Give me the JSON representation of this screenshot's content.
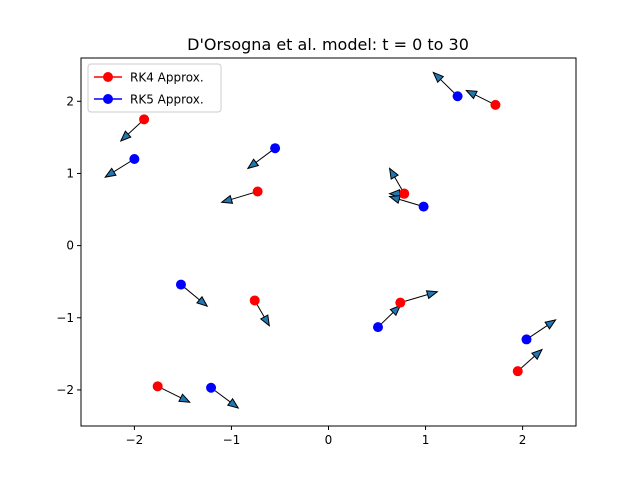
{
  "chart_data": {
    "type": "scatter",
    "title": "D'Orsogna et al. model: t = 0 to 30",
    "xlabel": "",
    "ylabel": "",
    "xlim": [
      -2.55,
      2.55
    ],
    "ylim": [
      -2.5,
      2.6
    ],
    "xticks": [
      -2,
      -1,
      0,
      1,
      2
    ],
    "yticks": [
      -2,
      -1,
      0,
      1,
      2
    ],
    "xtick_labels": [
      "−2",
      "−1",
      "0",
      "1",
      "2"
    ],
    "ytick_labels": [
      "−2",
      "−1",
      "0",
      "1",
      "2"
    ],
    "grid": false,
    "legend_position": "top-left",
    "series": [
      {
        "name": "RK4 Approx.",
        "color": "#ff0000",
        "points": [
          {
            "x": -1.9,
            "y": 1.75,
            "dx": -0.24,
            "dy": -0.3
          },
          {
            "x": -0.73,
            "y": 0.75,
            "dx": -0.37,
            "dy": -0.15
          },
          {
            "x": 1.72,
            "y": 1.95,
            "dx": -0.3,
            "dy": 0.2
          },
          {
            "x": 0.78,
            "y": 0.72,
            "dx": -0.15,
            "dy": 0.35
          },
          {
            "x": 0.78,
            "y": 0.72,
            "dx": -0.15,
            "dy": 0.0
          },
          {
            "x": -0.76,
            "y": -0.76,
            "dx": 0.15,
            "dy": -0.35
          },
          {
            "x": 0.74,
            "y": -0.79,
            "dx": 0.38,
            "dy": 0.15
          },
          {
            "x": -1.76,
            "y": -1.95,
            "dx": 0.33,
            "dy": -0.22
          },
          {
            "x": 1.95,
            "y": -1.74,
            "dx": 0.25,
            "dy": 0.3
          }
        ]
      },
      {
        "name": "RK5 Approx.",
        "color": "#0000ff",
        "points": [
          {
            "x": -2.0,
            "y": 1.2,
            "dx": -0.3,
            "dy": -0.25
          },
          {
            "x": -0.55,
            "y": 1.35,
            "dx": -0.28,
            "dy": -0.28
          },
          {
            "x": 1.33,
            "y": 2.07,
            "dx": -0.25,
            "dy": 0.33
          },
          {
            "x": 0.98,
            "y": 0.54,
            "dx": -0.35,
            "dy": 0.14
          },
          {
            "x": -1.52,
            "y": -0.54,
            "dx": 0.27,
            "dy": -0.3
          },
          {
            "x": 0.51,
            "y": -1.13,
            "dx": 0.23,
            "dy": 0.3
          },
          {
            "x": -1.21,
            "y": -1.97,
            "dx": 0.28,
            "dy": -0.28
          },
          {
            "x": 2.04,
            "y": -1.3,
            "dx": 0.3,
            "dy": 0.27
          }
        ]
      }
    ]
  }
}
